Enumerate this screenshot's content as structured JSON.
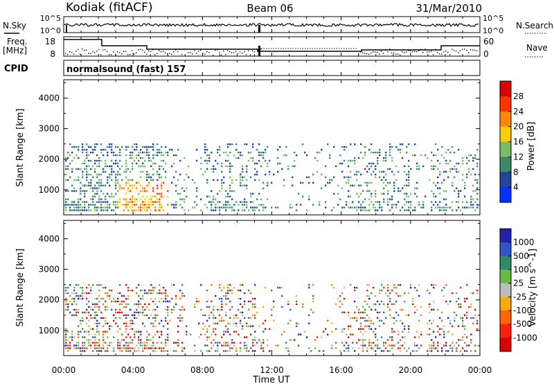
{
  "header": {
    "station": "Kodiak (fitACF)",
    "beam": "Beam 06",
    "date": "31/Mar/2010"
  },
  "labels": {
    "nsky": "N.Sky",
    "nsearch": "N.Search",
    "freq": "Freq.",
    "freq_unit": "[MHz]",
    "nave": "Nave",
    "cpid": "CPID",
    "cpid_value": "normalsound (fast) 157",
    "noise_ticks_left": [
      "10^5",
      "10^0"
    ],
    "noise_ticks_right": [
      "10^5",
      "10^0"
    ],
    "freq_ticks": [
      "18",
      "8"
    ],
    "nave_ticks": [
      "60",
      "0"
    ]
  },
  "colors": {
    "power": [
      "#0033ff",
      "#224499",
      "#3a8a6a",
      "#77bb66",
      "#ffcc00",
      "#ff8800",
      "#ff3300",
      "#dd0000"
    ],
    "velocity": [
      "#2222aa",
      "#3355cc",
      "#338866",
      "#66bb44",
      "#bbbbbb",
      "#ffaa00",
      "#ff6600",
      "#ff2200",
      "#dd0000"
    ]
  },
  "chart_data": [
    {
      "type": "heatmap",
      "name": "power",
      "ylabel": "Slant Range [km]",
      "xlabel": "",
      "x_ticks": [
        "00:00",
        "04:00",
        "08:00",
        "12:00",
        "16:00",
        "20:00",
        "00:00"
      ],
      "xlim_hours": [
        0,
        24
      ],
      "ylim": [
        180,
        4600
      ],
      "y_ticks": [
        1000,
        2000,
        3000,
        4000
      ],
      "colorbar_label": "Power [dB]",
      "colorbar_ticks": [
        4,
        8,
        12,
        16,
        20,
        24,
        28
      ],
      "range_lines_km": [
        330,
        420,
        510,
        600,
        690,
        780,
        870,
        960,
        1050,
        1140,
        1230,
        1320,
        1410,
        1500,
        1590,
        1680,
        1770,
        1860,
        1950,
        2040,
        2130,
        2220,
        2310,
        2400,
        2490
      ],
      "activity_by_hour": [
        0.8,
        0.9,
        0.8,
        0.9,
        0.85,
        0.75,
        0.35,
        0.2,
        0.6,
        0.65,
        0.6,
        0.4,
        0.2,
        0.15,
        0.15,
        0.2,
        0.45,
        0.6,
        0.55,
        0.45,
        0.35,
        0.4,
        0.45,
        0.5
      ]
    },
    {
      "type": "heatmap",
      "name": "velocity",
      "ylabel": "Slant Range [km]",
      "xlabel": "Time UT",
      "x_ticks": [
        "00:00",
        "04:00",
        "08:00",
        "12:00",
        "16:00",
        "20:00",
        "00:00"
      ],
      "xlim_hours": [
        0,
        24
      ],
      "ylim": [
        180,
        4600
      ],
      "y_ticks": [
        1000,
        2000,
        3000,
        4000
      ],
      "colorbar_label": "Velocity [m s^-1]",
      "colorbar_ticks": [
        "1000",
        "500",
        "100",
        "25",
        "-25",
        "-100",
        "-500",
        "-1000"
      ],
      "range_lines_km": [
        330,
        420,
        510,
        600,
        690,
        780,
        870,
        960,
        1050,
        1140,
        1230,
        1320,
        1410,
        1500,
        1590,
        1680,
        1770,
        1860,
        1950,
        2040,
        2130,
        2220,
        2310,
        2400,
        2490
      ],
      "activity_by_hour": [
        0.8,
        0.9,
        0.8,
        0.9,
        0.85,
        0.75,
        0.35,
        0.2,
        0.6,
        0.65,
        0.6,
        0.4,
        0.2,
        0.15,
        0.15,
        0.2,
        0.45,
        0.6,
        0.55,
        0.45,
        0.35,
        0.4,
        0.45,
        0.5
      ]
    }
  ]
}
